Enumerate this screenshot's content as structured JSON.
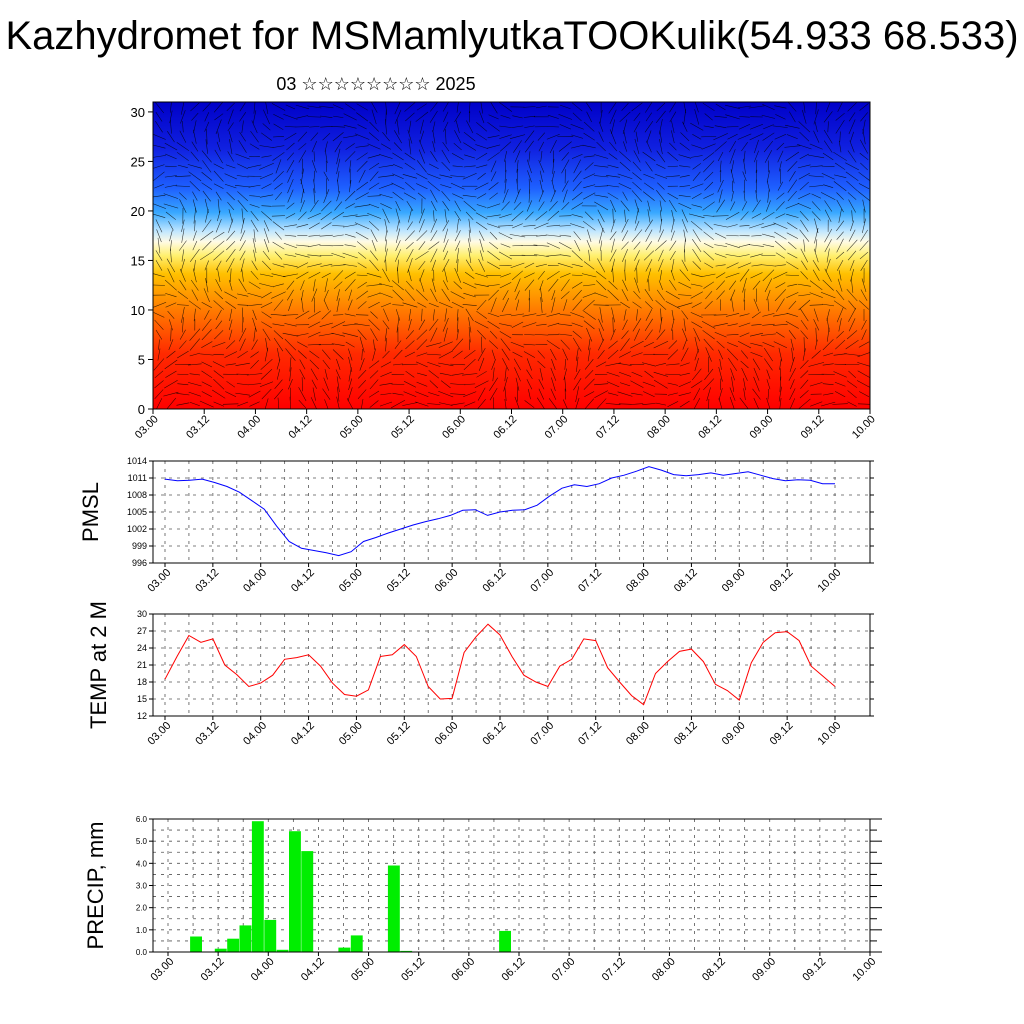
{
  "title": "Kazhydromet for MSMamlyutkaTOOKulik(54.933 68.533)",
  "subtitle": "03 ☆☆☆☆☆☆☆☆ 2025",
  "colors": {
    "pmsl_line": "#0000ff",
    "temp_line": "#ff0000",
    "precip_bar": "#00ee00",
    "grid": "#555555",
    "cross_section_warm": "#ff0000",
    "cross_section_cold": "#0000c8"
  },
  "chart_data": [
    {
      "type": "heatmap",
      "title": "",
      "xlabel": "",
      "ylabel": "",
      "xlim": [
        0,
        56
      ],
      "ylim": [
        0,
        31
      ],
      "x_tick_labels": [
        "03.00",
        "03.12",
        "04.00",
        "04.12",
        "05.00",
        "05.12",
        "06.00",
        "06.12",
        "07.00",
        "07.12",
        "08.00",
        "08.12",
        "09.00",
        "09.12",
        "10.00"
      ],
      "y_tick_values": [
        0,
        5,
        10,
        15,
        20,
        25,
        30
      ],
      "description_colors": [
        "#ff0000",
        "#ff6a00",
        "#ffc800",
        "#fff0a0",
        "#a0d8ff",
        "#3c78ff",
        "#0000c8"
      ],
      "overlay": "wind vectors"
    },
    {
      "type": "line",
      "ylabel": "PMSL",
      "ylim": [
        996,
        1014
      ],
      "y_tick_values": [
        996,
        999,
        1002,
        1005,
        1008,
        1011,
        1014
      ],
      "x_tick_labels": [
        "03.00",
        "03.12",
        "04.00",
        "04.12",
        "05.00",
        "05.12",
        "06.00",
        "06.12",
        "07.00",
        "07.12",
        "08.00",
        "08.12",
        "09.00",
        "09.12",
        "10.00"
      ],
      "series": [
        {
          "values": [
            1010.8,
            1010.5,
            1010.6,
            1010.8,
            1010.2,
            1009.5,
            1008.5,
            1007.0,
            1005.5,
            1002.5,
            999.8,
            998.6,
            998.2,
            997.8,
            997.3,
            998.0,
            999.8,
            1000.5,
            1001.3,
            1002.0,
            1002.7,
            1003.3,
            1003.8,
            1004.4,
            1005.3,
            1005.4,
            1004.4,
            1005.0,
            1005.3,
            1005.4,
            1006.2,
            1007.8,
            1009.2,
            1009.8,
            1009.5,
            1010.0,
            1011.0,
            1011.5,
            1012.2,
            1013.0,
            1012.4,
            1011.6,
            1011.4,
            1011.6,
            1011.9,
            1011.5,
            1011.8,
            1012.1,
            1011.5,
            1010.9,
            1010.5,
            1010.7,
            1010.6,
            1010.0,
            1010.0
          ]
        }
      ]
    },
    {
      "type": "line",
      "ylabel": "TEMP at 2 M",
      "ylim": [
        12,
        30
      ],
      "y_tick_values": [
        12,
        15,
        18,
        21,
        24,
        27,
        30
      ],
      "x_tick_labels": [
        "03.00",
        "03.12",
        "04.00",
        "04.12",
        "05.00",
        "05.12",
        "06.00",
        "06.12",
        "07.00",
        "07.12",
        "08.00",
        "08.12",
        "09.00",
        "09.12",
        "10.00"
      ],
      "series": [
        {
          "values": [
            18.5,
            22.5,
            26.2,
            25.0,
            25.6,
            21.0,
            19.3,
            17.2,
            17.8,
            19.2,
            22.0,
            22.3,
            22.8,
            20.8,
            17.8,
            15.8,
            15.5,
            16.6,
            22.5,
            22.8,
            24.6,
            22.5,
            17.2,
            15.0,
            15.1,
            23.2,
            26.0,
            28.2,
            26.3,
            22.5,
            19.2,
            18.0,
            17.2,
            20.8,
            22.0,
            25.6,
            25.3,
            20.5,
            18.0,
            15.6,
            14.0,
            19.5,
            21.6,
            23.4,
            23.8,
            21.6,
            17.6,
            16.5,
            14.8,
            21.4,
            25.0,
            26.7,
            26.9,
            25.3,
            20.8,
            19.0,
            17.2
          ]
        }
      ]
    },
    {
      "type": "bar",
      "ylabel": "PRECIP, mm",
      "ylim": [
        0,
        6
      ],
      "y_tick_labels": [
        "0.0",
        "1.0",
        "2.0",
        "3.0",
        "4.0",
        "5.0",
        "6.0"
      ],
      "x_tick_labels": [
        "03.00",
        "03.12",
        "04.00",
        "04.12",
        "05.00",
        "05.12",
        "06.00",
        "06.12",
        "07.00",
        "07.12",
        "08.00",
        "08.12",
        "09.00",
        "09.12",
        "10.00"
      ],
      "values": [
        0,
        0,
        0,
        0.7,
        0,
        0.15,
        0.6,
        1.2,
        5.9,
        1.45,
        0.1,
        5.45,
        4.55,
        0,
        0,
        0.2,
        0.75,
        0,
        0,
        3.9,
        0.05,
        0,
        0,
        0,
        0,
        0,
        0,
        0,
        0.95,
        0,
        0,
        0,
        0,
        0,
        0,
        0,
        0,
        0,
        0,
        0,
        0,
        0,
        0,
        0,
        0,
        0,
        0,
        0,
        0,
        0,
        0,
        0,
        0,
        0,
        0,
        0,
        0,
        0
      ]
    }
  ]
}
